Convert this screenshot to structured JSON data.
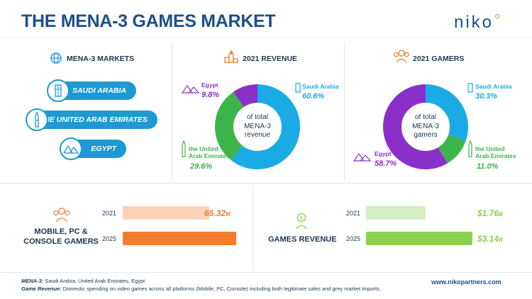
{
  "header": {
    "title": "THE MENA-3 GAMES MARKET",
    "logo": "niko"
  },
  "markets": {
    "heading": "MENA-3 MARKETS",
    "items": [
      "SAUDI ARABIA",
      "THE UNITED ARAB EMIRATES",
      "EGYPT"
    ]
  },
  "revenue": {
    "heading": "2021 REVENUE",
    "center": [
      "of total",
      "MENA-3",
      "revenue"
    ],
    "labels": {
      "saudi": {
        "name": "Saudi Arabia",
        "pct": "60.6%"
      },
      "uae": {
        "name": [
          "the United",
          "Arab Emirates"
        ],
        "pct": "29.6%"
      },
      "egypt": {
        "name": "Egypt",
        "pct": "9.8%"
      }
    }
  },
  "gamers": {
    "heading": "2021 GAMERS",
    "center": [
      "of total",
      "MENA-3",
      "gamers"
    ],
    "labels": {
      "saudi": {
        "name": "Saudi Arabia",
        "pct": "30.3%"
      },
      "uae": {
        "name": [
          "the United",
          "Arab Emirates"
        ],
        "pct": "11.0%"
      },
      "egypt": {
        "name": "Egypt",
        "pct": "58.7%"
      }
    }
  },
  "gamers_bars": {
    "title": [
      "MOBILE, PC &",
      "CONSOLE GAMERS"
    ],
    "rows": [
      {
        "year": "2021",
        "value": "65.32",
        "unit": "M"
      },
      {
        "year": "2025",
        "value": "85.76",
        "unit": "M"
      }
    ]
  },
  "revenue_bars": {
    "title": "GAMES REVENUE",
    "rows": [
      {
        "year": "2021",
        "value": "$1.76",
        "unit": "B"
      },
      {
        "year": "2025",
        "value": "$3.14",
        "unit": "B"
      }
    ]
  },
  "footer": {
    "line1_label": "MENA-3:",
    "line1_text": " Saudi Arabia, United Arab Emirates, Egypt",
    "line2_label": "Game Revenue:",
    "line2_text": " Domestic spending on video games across all platforms (Mobile, PC, Console) including both legitimate sales and grey market imports.",
    "url": "www.nikopartners.com"
  },
  "colors": {
    "saudi": "#1aabe6",
    "uae": "#3bb54a",
    "egypt": "#8b2fc9",
    "gamers_bar_2021": "#fbd3b8",
    "gamers_bar_2025": "#f47c30",
    "revenue_bar_2021": "#d4efc4",
    "revenue_bar_2025": "#8cd04f"
  },
  "chart_data": [
    {
      "type": "pie",
      "title": "2021 REVENUE",
      "categories": [
        "Saudi Arabia",
        "the United Arab Emirates",
        "Egypt"
      ],
      "values": [
        60.6,
        29.6,
        9.8
      ]
    },
    {
      "type": "pie",
      "title": "2021 GAMERS",
      "categories": [
        "Saudi Arabia",
        "the United Arab Emirates",
        "Egypt"
      ],
      "values": [
        30.3,
        11.0,
        58.7
      ]
    },
    {
      "type": "bar",
      "title": "MOBILE, PC & CONSOLE GAMERS",
      "categories": [
        "2021",
        "2025"
      ],
      "values": [
        65.32,
        85.76
      ],
      "unit": "M"
    },
    {
      "type": "bar",
      "title": "GAMES REVENUE",
      "categories": [
        "2021",
        "2025"
      ],
      "values": [
        1.76,
        3.14
      ],
      "unit": "B"
    }
  ]
}
